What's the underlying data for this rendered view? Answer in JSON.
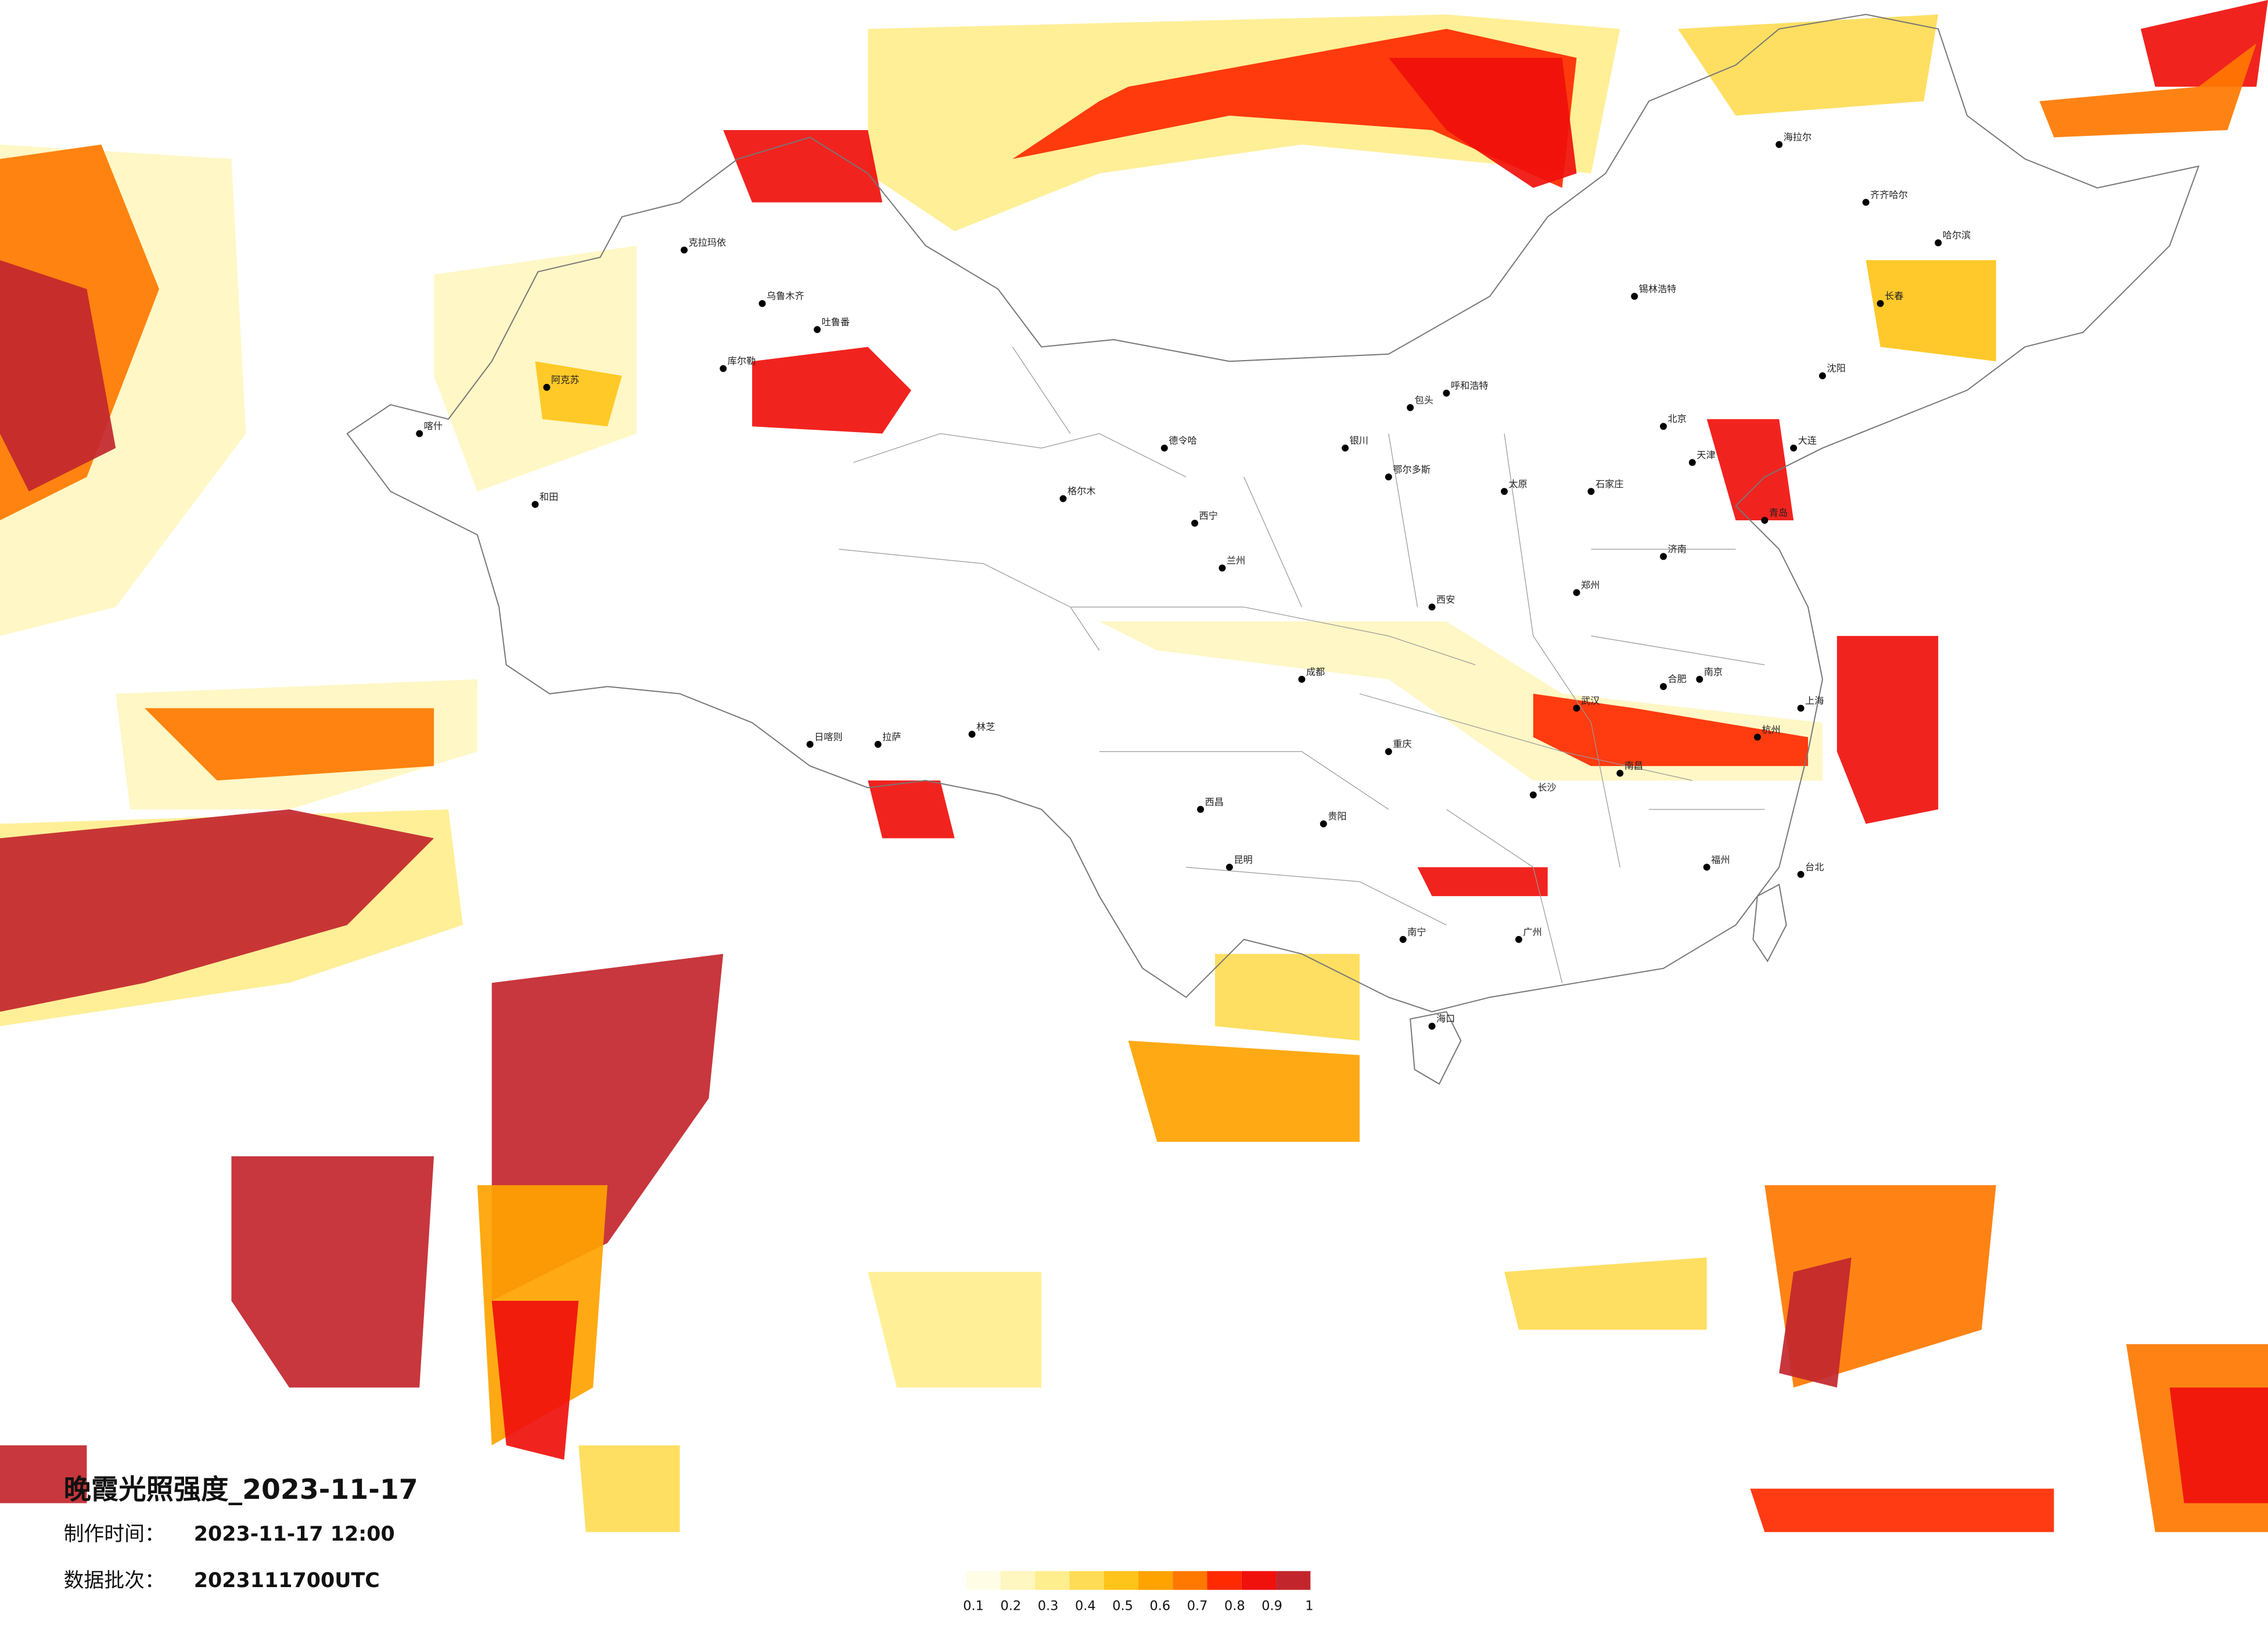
{
  "map": {
    "title": "晚霞光照强度_2023-11-17",
    "made_label": "制作时间：",
    "made_time": "2023-11-17 12:00",
    "batch_label": "数据批次：",
    "batch": "2023111700UTC",
    "legend": {
      "ticks": [
        "0.1",
        "0.2",
        "0.3",
        "0.4",
        "0.5",
        "0.6",
        "0.7",
        "0.8",
        "0.9",
        "1"
      ],
      "colors": [
        "#fffde6",
        "#fff6c0",
        "#ffee8e",
        "#ffdc55",
        "#ffc41a",
        "#ffa300",
        "#ff7800",
        "#ff2a00",
        "#f0100c",
        "#c2262c"
      ]
    },
    "cities": [
      "克拉玛依",
      "乌鲁木齐",
      "吐鲁番",
      "库尔勒",
      "阿克苏",
      "喀什",
      "和田",
      "格尔木",
      "德令哈",
      "西宁",
      "兰州",
      "银川",
      "呼和浩特",
      "包头",
      "北京",
      "天津",
      "石家庄",
      "太原",
      "济南",
      "青岛",
      "郑州",
      "西安",
      "成都",
      "重庆",
      "拉萨",
      "日喀则",
      "林芝",
      "昆明",
      "贵阳",
      "南宁",
      "广州",
      "福州",
      "南京",
      "上海",
      "杭州",
      "合肥",
      "武汉",
      "长沙",
      "南昌",
      "哈尔滨",
      "长春",
      "沈阳",
      "大连",
      "海口",
      "台北",
      "齐齐哈尔",
      "海拉尔",
      "锡林浩特",
      "鄂尔多斯",
      "西昌"
    ]
  }
}
